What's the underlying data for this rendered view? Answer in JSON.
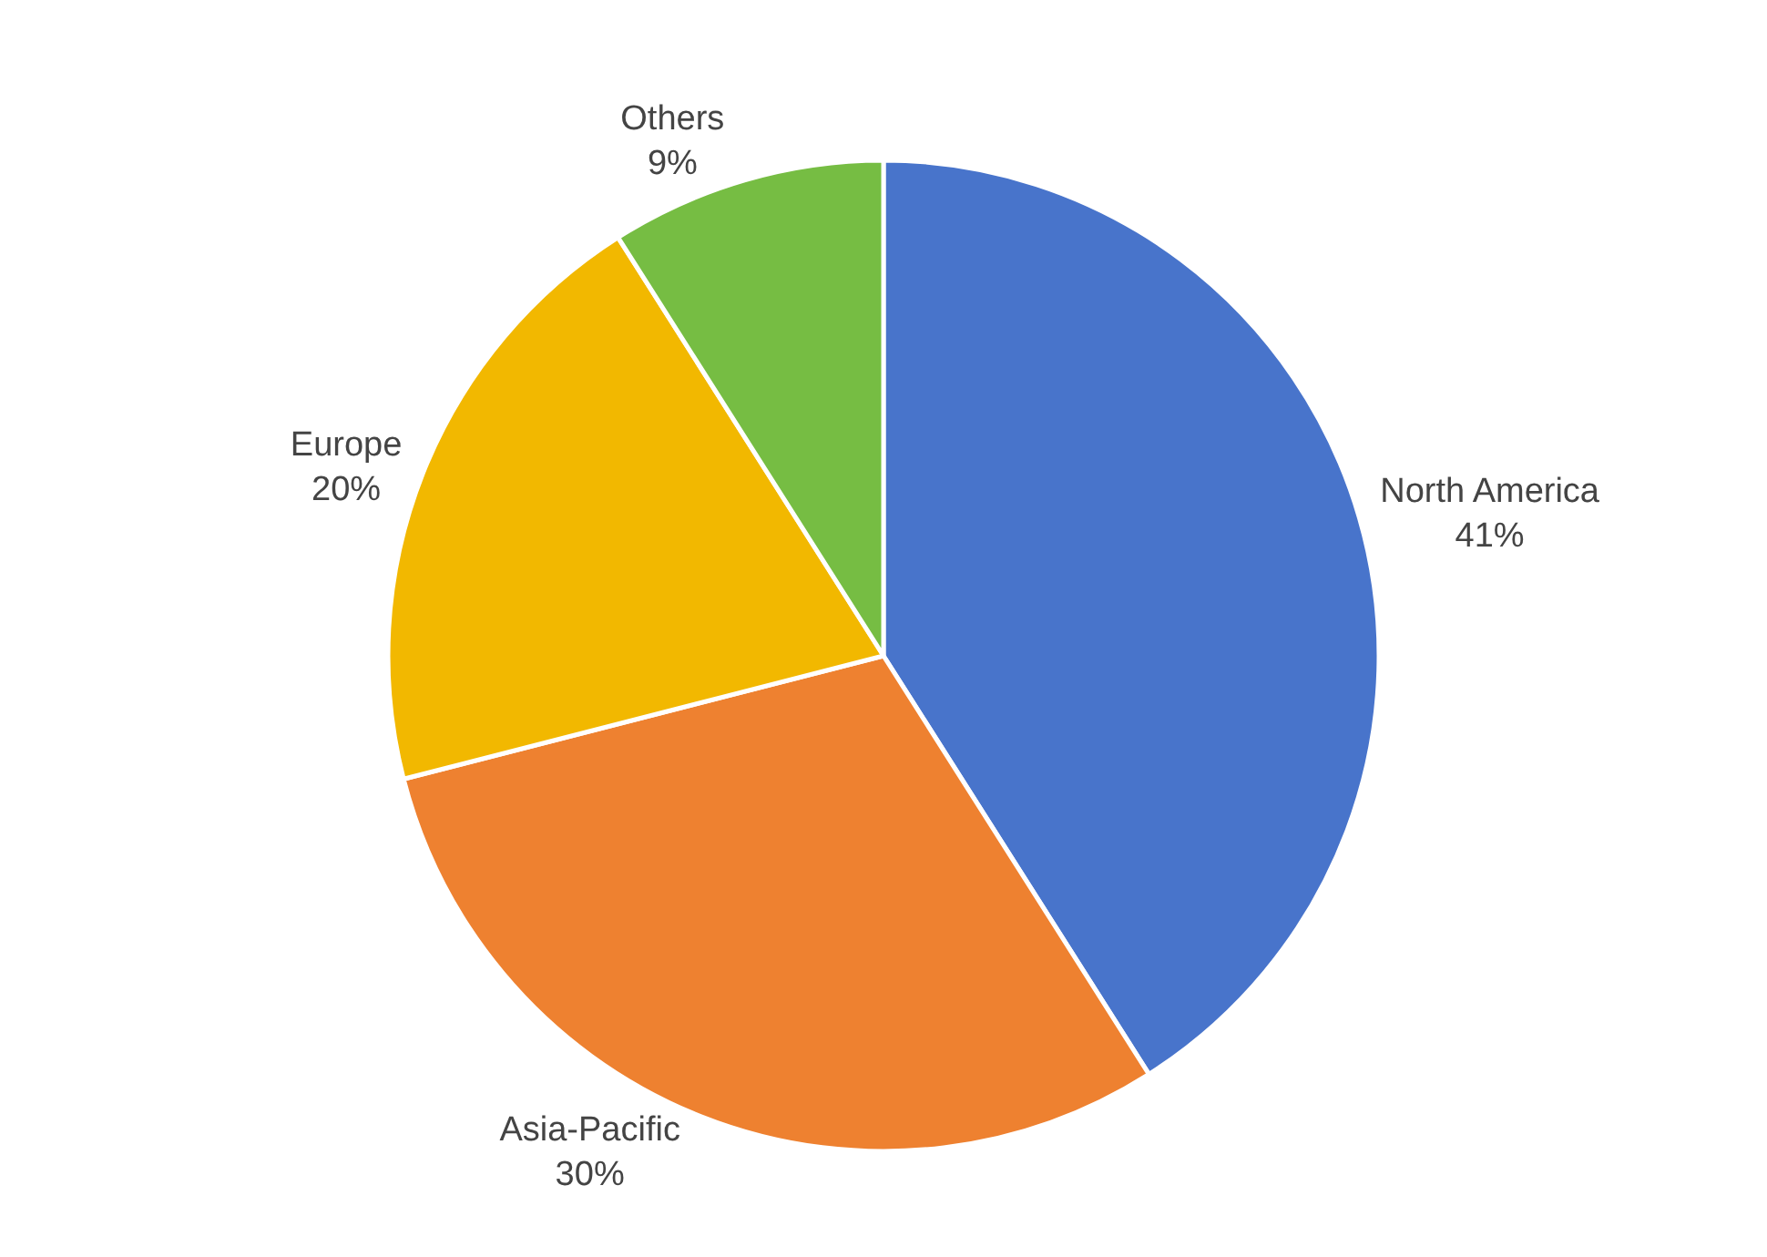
{
  "chart_data": {
    "type": "pie",
    "categories": [
      "North America",
      "Asia-Pacific",
      "Europe",
      "Others"
    ],
    "values": [
      41,
      30,
      20,
      9
    ],
    "value_labels": [
      "41%",
      "30%",
      "20%",
      "9%"
    ],
    "colors": [
      "#4874cb",
      "#ee8130",
      "#f2b800",
      "#76bd43"
    ],
    "legend": false
  }
}
